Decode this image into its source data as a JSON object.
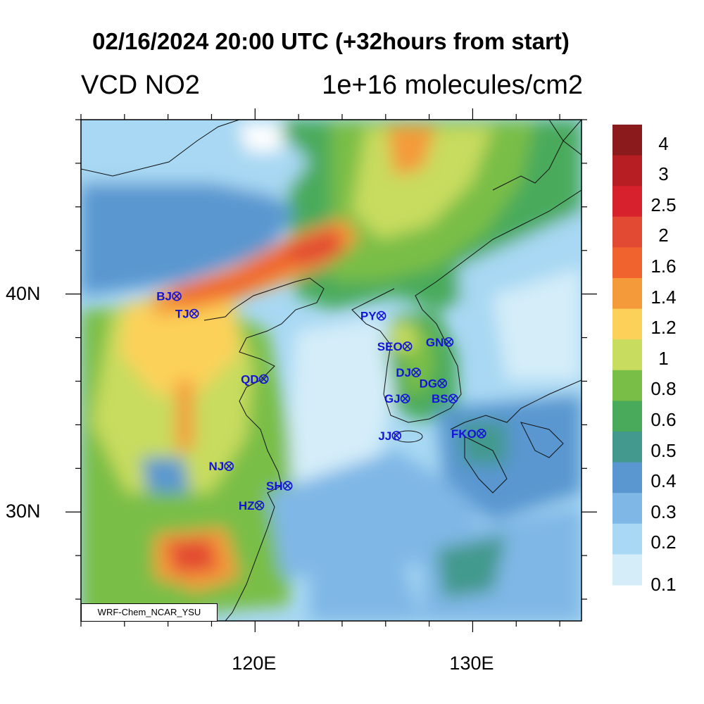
{
  "title": "02/16/2024 20:00 UTC (+32hours from start)",
  "variable": "VCD NO2",
  "units": "1e+16 molecules/cm2",
  "credit": "WRF-Chem_NCAR_YSU",
  "lat_labels": [
    {
      "text": "40N",
      "lat": 40
    },
    {
      "text": "30N",
      "lat": 30
    }
  ],
  "lon_labels": [
    {
      "text": "120E",
      "lon": 120
    },
    {
      "text": "130E",
      "lon": 130
    }
  ],
  "extent": {
    "lon_min": 112,
    "lon_max": 135,
    "lat_min": 25,
    "lat_max": 48
  },
  "colorbar": {
    "labels": [
      "4",
      "3",
      "2.5",
      "2",
      "1.6",
      "1.4",
      "1.2",
      "1",
      "0.8",
      "0.6",
      "0.5",
      "0.4",
      "0.3",
      "0.2",
      "0.1"
    ],
    "colors": [
      "#8b1a1c",
      "#b61e24",
      "#d7222d",
      "#e34a33",
      "#f0632f",
      "#f59a3b",
      "#fcd15a",
      "#c8dc5f",
      "#79be47",
      "#4aaa5b",
      "#43998d",
      "#5a97d0",
      "#7fb7e6",
      "#a8d8f3",
      "#d4edf9"
    ]
  },
  "stations": [
    {
      "code": "BJ",
      "lon": 116.4,
      "lat": 39.9
    },
    {
      "code": "TJ",
      "lon": 117.2,
      "lat": 39.1
    },
    {
      "code": "QD",
      "lon": 120.4,
      "lat": 36.1
    },
    {
      "code": "NJ",
      "lon": 118.8,
      "lat": 32.1
    },
    {
      "code": "SH",
      "lon": 121.5,
      "lat": 31.2
    },
    {
      "code": "HZ",
      "lon": 120.2,
      "lat": 30.3
    },
    {
      "code": "PY",
      "lon": 125.8,
      "lat": 39.0
    },
    {
      "code": "SEO",
      "lon": 127.0,
      "lat": 37.6
    },
    {
      "code": "GN",
      "lon": 128.9,
      "lat": 37.8
    },
    {
      "code": "DJ",
      "lon": 127.4,
      "lat": 36.4
    },
    {
      "code": "DG",
      "lon": 128.6,
      "lat": 35.9
    },
    {
      "code": "GJ",
      "lon": 126.9,
      "lat": 35.2
    },
    {
      "code": "BS",
      "lon": 129.1,
      "lat": 35.2
    },
    {
      "code": "JJ",
      "lon": 126.5,
      "lat": 33.5
    },
    {
      "code": "FKO",
      "lon": 130.4,
      "lat": 33.6
    }
  ]
}
